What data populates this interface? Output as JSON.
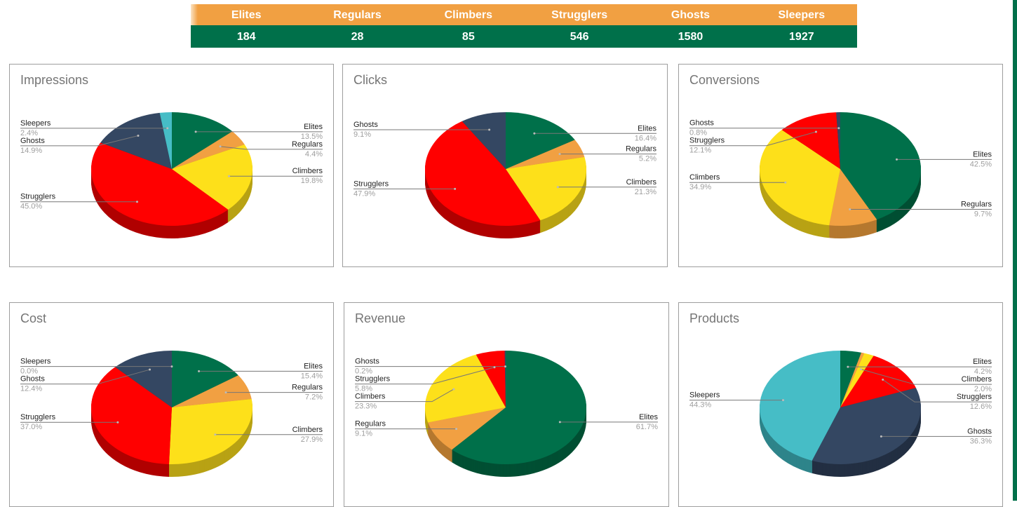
{
  "summary": {
    "headers": [
      "Elites",
      "Regulars",
      "Climbers",
      "Strugglers",
      "Ghosts",
      "Sleepers"
    ],
    "values": [
      "184",
      "28",
      "85",
      "546",
      "1580",
      "1927"
    ]
  },
  "colors": {
    "Elites": [
      "#00704a",
      "#004f33"
    ],
    "Regulars": [
      "#f1a042",
      "#b5782f"
    ],
    "Climbers": [
      "#fde01a",
      "#b8a214"
    ],
    "Strugglers": [
      "#ff0000",
      "#b00000"
    ],
    "Ghosts": [
      "#344762",
      "#222f42"
    ],
    "Sleepers": [
      "#46bdc6",
      "#2e848a"
    ]
  },
  "chart_data": [
    {
      "type": "pie",
      "title": "Impressions",
      "slices": [
        {
          "name": "Elites",
          "value": 13.5,
          "label": "13.5%"
        },
        {
          "name": "Regulars",
          "value": 4.4,
          "label": "4.4%"
        },
        {
          "name": "Climbers",
          "value": 19.8,
          "label": "19.8%"
        },
        {
          "name": "Strugglers",
          "value": 45.0,
          "label": "45.0%"
        },
        {
          "name": "Ghosts",
          "value": 14.9,
          "label": "14.9%"
        },
        {
          "name": "Sleepers",
          "value": 2.4,
          "label": "2.4%"
        }
      ]
    },
    {
      "type": "pie",
      "title": "Clicks",
      "slices": [
        {
          "name": "Elites",
          "value": 16.4,
          "label": "16.4%"
        },
        {
          "name": "Regulars",
          "value": 5.2,
          "label": "5.2%"
        },
        {
          "name": "Climbers",
          "value": 21.3,
          "label": "21.3%"
        },
        {
          "name": "Strugglers",
          "value": 47.9,
          "label": "47.9%"
        },
        {
          "name": "Ghosts",
          "value": 9.1,
          "label": "9.1%"
        }
      ]
    },
    {
      "type": "pie",
      "title": "Conversions",
      "slices": [
        {
          "name": "Elites",
          "value": 42.5,
          "label": "42.5%"
        },
        {
          "name": "Regulars",
          "value": 9.7,
          "label": "9.7%"
        },
        {
          "name": "Climbers",
          "value": 34.9,
          "label": "34.9%"
        },
        {
          "name": "Strugglers",
          "value": 12.1,
          "label": "12.1%"
        },
        {
          "name": "Ghosts",
          "value": 0.8,
          "label": "0.8%"
        }
      ]
    },
    {
      "type": "pie",
      "title": "Cost",
      "slices": [
        {
          "name": "Elites",
          "value": 15.4,
          "label": "15.4%"
        },
        {
          "name": "Regulars",
          "value": 7.2,
          "label": "7.2%"
        },
        {
          "name": "Climbers",
          "value": 27.9,
          "label": "27.9%"
        },
        {
          "name": "Strugglers",
          "value": 37.0,
          "label": "37.0%"
        },
        {
          "name": "Ghosts",
          "value": 12.4,
          "label": "12.4%"
        },
        {
          "name": "Sleepers",
          "value": 0.0,
          "label": "0.0%"
        }
      ]
    },
    {
      "type": "pie",
      "title": "Revenue",
      "slices": [
        {
          "name": "Elites",
          "value": 61.7,
          "label": "61.7%"
        },
        {
          "name": "Regulars",
          "value": 9.1,
          "label": "9.1%"
        },
        {
          "name": "Climbers",
          "value": 23.3,
          "label": "23.3%"
        },
        {
          "name": "Strugglers",
          "value": 5.8,
          "label": "5.8%"
        },
        {
          "name": "Ghosts",
          "value": 0.2,
          "label": "0.2%"
        }
      ]
    },
    {
      "type": "pie",
      "title": "Products",
      "slices": [
        {
          "name": "Elites",
          "value": 4.2,
          "label": "4.2%"
        },
        {
          "name": "Regulars",
          "value": 0.6
        },
        {
          "name": "Climbers",
          "value": 2.0,
          "label": "2.0%"
        },
        {
          "name": "Strugglers",
          "value": 12.6,
          "label": "12.6%"
        },
        {
          "name": "Ghosts",
          "value": 36.3,
          "label": "36.3%"
        },
        {
          "name": "Sleepers",
          "value": 44.3,
          "label": "44.3%"
        }
      ]
    }
  ]
}
